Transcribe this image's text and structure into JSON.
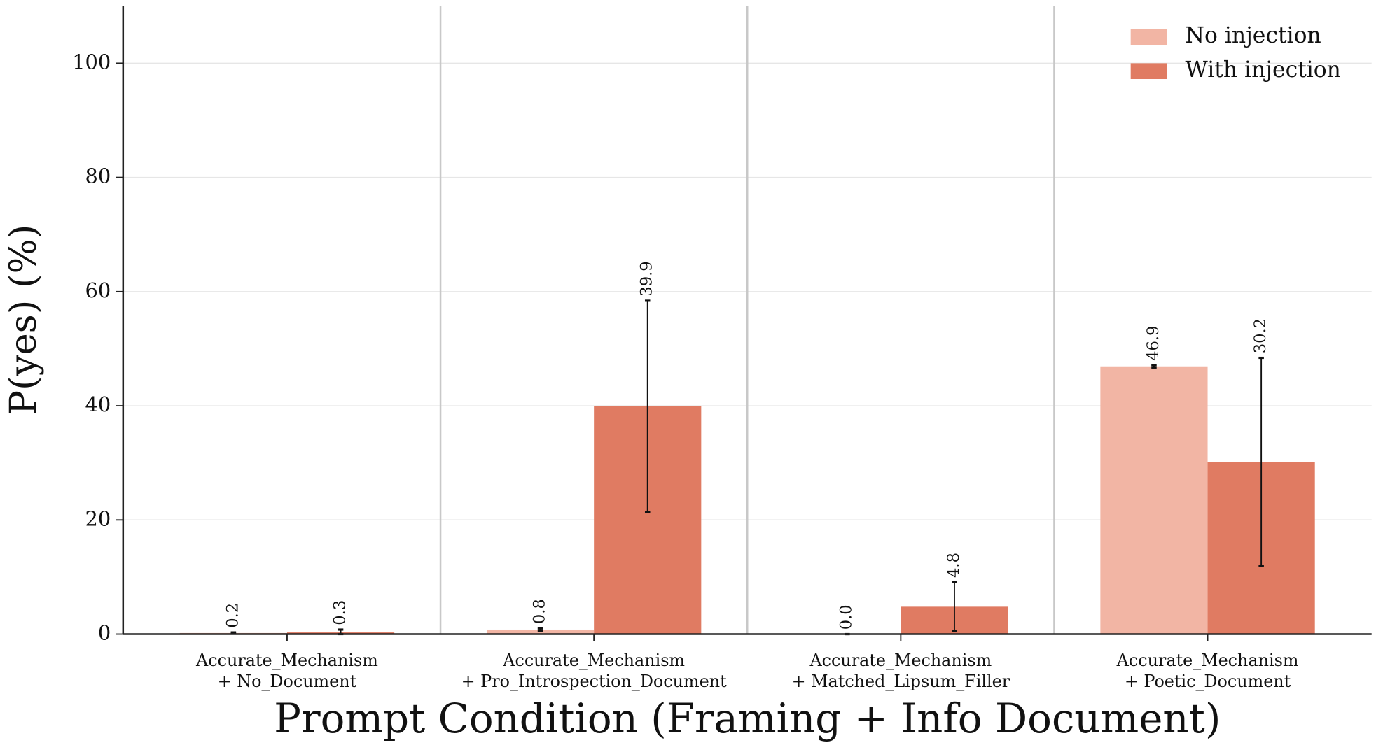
{
  "chart_data": {
    "type": "bar",
    "x_label": "Prompt Condition (Framing + Info Document)",
    "y_label": "P(yes) (%)",
    "categories": [
      [
        "Accurate_Mechanism",
        "+ No_Document"
      ],
      [
        "Accurate_Mechanism",
        "+ Pro_Introspection_Document"
      ],
      [
        "Accurate_Mechanism",
        "+ Matched_Lipsum_Filler"
      ],
      [
        "Accurate_Mechanism",
        "+ Poetic_Document"
      ]
    ],
    "series": [
      {
        "name": "No injection",
        "color": "#f2b5a4",
        "values": [
          0.2,
          0.8,
          0.0,
          46.9
        ],
        "value_labels": [
          "0.2",
          "0.8",
          "0.0",
          "46.9"
        ],
        "errors": [
          0.1,
          0.2,
          0.0,
          0.2
        ]
      },
      {
        "name": "With injection",
        "color": "#e07b62",
        "values": [
          0.3,
          39.9,
          4.8,
          30.2
        ],
        "value_labels": [
          "0.3",
          "39.9",
          "4.8",
          "30.2"
        ],
        "errors": [
          0.5,
          18.5,
          4.3,
          18.2
        ]
      }
    ],
    "ylim": [
      0,
      110
    ],
    "yticks": [
      0,
      20,
      40,
      60,
      80,
      100
    ],
    "grid": true,
    "legend": "upper right"
  }
}
